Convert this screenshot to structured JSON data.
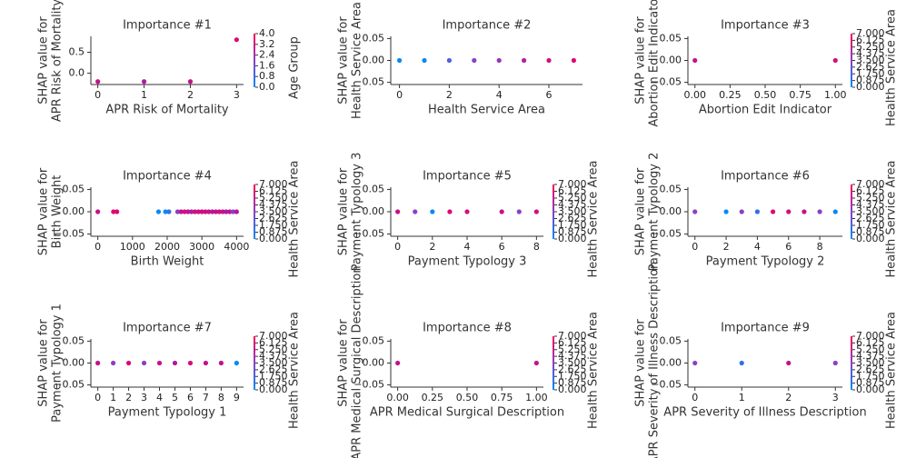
{
  "chart_data": [
    {
      "type": "scatter",
      "title": "Importance #1",
      "x_label": "APR Risk of Mortality",
      "y_label": [
        "SHAP value for",
        "APR Risk of Mortality"
      ],
      "x": [
        0,
        1,
        2,
        3
      ],
      "values": [
        -0.2,
        -0.2,
        -0.2,
        0.8
      ],
      "point_colors": [
        "#c4128a",
        "#b01a9c",
        "#c4128a",
        "#e00674"
      ],
      "xlim": [
        -0.15,
        3.15
      ],
      "xticks": [
        0,
        1,
        2,
        3
      ],
      "ylim": [
        -0.27,
        0.88
      ],
      "yticks": [
        {
          "value": 0,
          "label": "0.0"
        },
        0.5
      ],
      "colorbar_label": "Age Group",
      "colorbar_lim": [
        0,
        4
      ],
      "colorbar_ticks": [
        {
          "value": 0,
          "label": "0.0"
        },
        0.8,
        1.6,
        2.4,
        3.2,
        {
          "value": 4,
          "label": "4.0"
        }
      ]
    },
    {
      "type": "scatter",
      "title": "Importance #2",
      "x_label": "Health Service Area",
      "y_label": [
        "SHAP value for",
        "Health Service Area"
      ],
      "x": [
        0,
        1,
        2,
        3,
        4,
        5,
        6,
        7
      ],
      "values": [
        0,
        0,
        0,
        0,
        0,
        0,
        0,
        0
      ],
      "point_colors": [
        "#0a88f5",
        "#0a88f5",
        "#5060e0",
        "#8a3fc8",
        "#9a35b8",
        "#b0229f",
        "#d0107f",
        "#e00674"
      ],
      "xlim": [
        -0.35,
        7.35
      ],
      "xticks": [
        0,
        2,
        4,
        6
      ],
      "ylim": [
        -0.055,
        0.055
      ],
      "yticks": [
        0.05,
        {
          "value": 0,
          "label": "0.00"
        },
        {
          "value": -0.05,
          "label": "−0.05"
        }
      ]
    },
    {
      "type": "scatter",
      "title": "Importance #3",
      "x_label": "Abortion Edit Indicator",
      "y_label": [
        "SHAP value for",
        "Abortion Edit Indicator"
      ],
      "x": [
        0,
        1
      ],
      "values": [
        0,
        0
      ],
      "point_colors": [
        "#c4128a",
        "#d0107f"
      ],
      "xlim": [
        -0.05,
        1.05
      ],
      "xticks": [
        {
          "value": 0,
          "label": "0.00"
        },
        0.25,
        {
          "value": 0.5,
          "label": "0.50"
        },
        0.75,
        {
          "value": 1,
          "label": "1.00"
        }
      ],
      "ylim": [
        -0.055,
        0.055
      ],
      "yticks": [
        0.05,
        {
          "value": 0,
          "label": "0.00"
        },
        {
          "value": -0.05,
          "label": "−0.05"
        }
      ],
      "colorbar_label": "Health Service Area",
      "colorbar_lim": [
        0,
        7
      ],
      "colorbar_ticks": [
        {
          "value": 0,
          "label": "0.000"
        },
        0.875,
        {
          "value": 1.75,
          "label": "1.750"
        },
        2.625,
        {
          "value": 3.5,
          "label": "3.500"
        },
        4.375,
        {
          "value": 5.25,
          "label": "5.250"
        },
        6.125,
        {
          "value": 7,
          "label": "7.000"
        }
      ]
    },
    {
      "type": "scatter",
      "title": "Importance #4",
      "x_label": "Birth Weight",
      "y_label": [
        "SHAP value for",
        "Birth Weight"
      ],
      "x": [
        0,
        450,
        550,
        1750,
        1950,
        2050,
        2300,
        2400,
        2500,
        2600,
        2700,
        2800,
        2900,
        3000,
        3100,
        3200,
        3300,
        3400,
        3500,
        3600,
        3700,
        3800,
        3900,
        4000
      ],
      "values": [
        0,
        0,
        0,
        0,
        0,
        0,
        0,
        0,
        0,
        0,
        0,
        0,
        0,
        0,
        0,
        0,
        0,
        0,
        0,
        0,
        0,
        0,
        0,
        0
      ],
      "point_colors": [
        "#c4128a",
        "#e00674",
        "#e00674",
        "#0a88f5",
        "#0a88f5",
        "#3070e8",
        "#8a3fc8",
        "#c4128a",
        "#d0107f",
        "#c4128a",
        "#b01a9c",
        "#d0107f",
        "#c4128a",
        "#e00674",
        "#c4128a",
        "#d0107f",
        "#b01a9c",
        "#c4128a",
        "#d0107f",
        "#c4128a",
        "#b01a9c",
        "#c4128a",
        "#8a3fc8",
        "#b01a9c"
      ],
      "xlim": [
        -200,
        4200
      ],
      "xticks": [
        0,
        1000,
        2000,
        3000,
        4000
      ],
      "ylim": [
        -0.055,
        0.055
      ],
      "yticks": [
        0.05,
        {
          "value": 0,
          "label": "0.00"
        },
        {
          "value": -0.05,
          "label": "−0.05"
        }
      ],
      "colorbar_label": "Health Service Area",
      "colorbar_lim": [
        0,
        7
      ],
      "colorbar_ticks": [
        {
          "value": 0,
          "label": "0.000"
        },
        0.875,
        {
          "value": 1.75,
          "label": "1.750"
        },
        2.625,
        {
          "value": 3.5,
          "label": "3.500"
        },
        4.375,
        {
          "value": 5.25,
          "label": "5.250"
        },
        6.125,
        {
          "value": 7,
          "label": "7.000"
        }
      ]
    },
    {
      "type": "scatter",
      "title": "Importance #5",
      "x_label": "Payment Typology 3",
      "y_label": [
        "SHAP value for",
        "Payment Typology 3"
      ],
      "x": [
        0,
        1,
        2,
        3,
        4,
        6,
        7,
        8
      ],
      "values": [
        0,
        0,
        0,
        0,
        0,
        0,
        0,
        0
      ],
      "point_colors": [
        "#c4128a",
        "#8a3fc8",
        "#0a88f5",
        "#e00674",
        "#d0107f",
        "#c4128a",
        "#8a3fc8",
        "#d0107f"
      ],
      "xlim": [
        -0.4,
        8.4
      ],
      "xticks": [
        0,
        2,
        4,
        6,
        8
      ],
      "ylim": [
        -0.055,
        0.055
      ],
      "yticks": [
        0.05,
        {
          "value": 0,
          "label": "0.00"
        },
        {
          "value": -0.05,
          "label": "−0.05"
        }
      ],
      "colorbar_label": "Health Service Area",
      "colorbar_lim": [
        0,
        7
      ],
      "colorbar_ticks": [
        {
          "value": 0,
          "label": "0.000"
        },
        0.875,
        {
          "value": 1.75,
          "label": "1.750"
        },
        2.625,
        {
          "value": 3.5,
          "label": "3.500"
        },
        4.375,
        {
          "value": 5.25,
          "label": "5.250"
        },
        6.125,
        {
          "value": 7,
          "label": "7.000"
        }
      ]
    },
    {
      "type": "scatter",
      "title": "Importance #6",
      "x_label": "Payment Typology 2",
      "y_label": [
        "SHAP value for",
        "Payment Typology 2"
      ],
      "x": [
        0,
        2,
        3,
        4,
        5,
        6,
        7,
        8,
        9
      ],
      "values": [
        0,
        0,
        0,
        0,
        0,
        0,
        0,
        0,
        0
      ],
      "point_colors": [
        "#8a3fc8",
        "#0a88f5",
        "#8a3fc8",
        "#3070e8",
        "#e00674",
        "#d0107f",
        "#c4128a",
        "#8a3fc8",
        "#0a88f5"
      ],
      "xlim": [
        -0.45,
        9.45
      ],
      "xticks": [
        0,
        2,
        4,
        6,
        8
      ],
      "ylim": [
        -0.055,
        0.055
      ],
      "yticks": [
        0.05,
        {
          "value": 0,
          "label": "0.00"
        },
        {
          "value": -0.05,
          "label": "−0.05"
        }
      ],
      "colorbar_label": "Health Service Area",
      "colorbar_lim": [
        0,
        7
      ],
      "colorbar_ticks": [
        {
          "value": 0,
          "label": "0.000"
        },
        0.875,
        {
          "value": 1.75,
          "label": "1.750"
        },
        2.625,
        {
          "value": 3.5,
          "label": "3.500"
        },
        4.375,
        {
          "value": 5.25,
          "label": "5.250"
        },
        6.125,
        {
          "value": 7,
          "label": "7.000"
        }
      ]
    },
    {
      "type": "scatter",
      "title": "Importance #7",
      "x_label": "Payment Typology 1",
      "y_label": [
        "SHAP value for",
        "Payment Typology 1"
      ],
      "x": [
        0,
        1,
        2,
        3,
        4,
        5,
        6,
        7,
        8,
        9
      ],
      "values": [
        0,
        0,
        0,
        0,
        0,
        0,
        0,
        0,
        0,
        0
      ],
      "point_colors": [
        "#c4128a",
        "#8a3fc8",
        "#e00674",
        "#8a3fc8",
        "#c4128a",
        "#b01a9c",
        "#d0107f",
        "#c4128a",
        "#c4128a",
        "#0a88f5"
      ],
      "xlim": [
        -0.45,
        9.45
      ],
      "xticks": [
        0,
        1,
        2,
        3,
        4,
        5,
        6,
        7,
        8,
        9
      ],
      "ylim": [
        -0.055,
        0.055
      ],
      "yticks": [
        0.05,
        {
          "value": 0,
          "label": "0.00"
        },
        {
          "value": -0.05,
          "label": "−0.05"
        }
      ],
      "colorbar_label": "Health Service Area",
      "colorbar_lim": [
        0,
        7
      ],
      "colorbar_ticks": [
        {
          "value": 0,
          "label": "0.000"
        },
        0.875,
        {
          "value": 1.75,
          "label": "1.750"
        },
        2.625,
        {
          "value": 3.5,
          "label": "3.500"
        },
        4.375,
        {
          "value": 5.25,
          "label": "5.250"
        },
        6.125,
        {
          "value": 7,
          "label": "7.000"
        }
      ]
    },
    {
      "type": "scatter",
      "title": "Importance #8",
      "x_label": "APR Medical Surgical Description",
      "y_label": [
        "SHAP value for",
        "APR Medical Surgical Description"
      ],
      "x": [
        0,
        1
      ],
      "values": [
        0,
        0
      ],
      "point_colors": [
        "#c4128a",
        "#c4128a"
      ],
      "xlim": [
        -0.05,
        1.05
      ],
      "xticks": [
        {
          "value": 0,
          "label": "0.00"
        },
        0.25,
        {
          "value": 0.5,
          "label": "0.50"
        },
        0.75,
        {
          "value": 1,
          "label": "1.00"
        }
      ],
      "ylim": [
        -0.055,
        0.055
      ],
      "yticks": [
        0.05,
        {
          "value": 0,
          "label": "0.00"
        },
        {
          "value": -0.05,
          "label": "−0.05"
        }
      ],
      "colorbar_label": "Health Service Area",
      "colorbar_lim": [
        0,
        7
      ],
      "colorbar_ticks": [
        {
          "value": 0,
          "label": "0.000"
        },
        0.875,
        {
          "value": 1.75,
          "label": "1.750"
        },
        2.625,
        {
          "value": 3.5,
          "label": "3.500"
        },
        4.375,
        {
          "value": 5.25,
          "label": "5.250"
        },
        6.125,
        {
          "value": 7,
          "label": "7.000"
        }
      ]
    },
    {
      "type": "scatter",
      "title": "Importance #9",
      "x_label": "APR Severity of Illness Description",
      "y_label": [
        "SHAP value for",
        "APR Severity of Illness Description"
      ],
      "x": [
        0,
        1,
        2,
        3
      ],
      "values": [
        0,
        0,
        0,
        0
      ],
      "point_colors": [
        "#8a3fc8",
        "#3070e8",
        "#c4128a",
        "#8a3fc8"
      ],
      "xlim": [
        -0.15,
        3.15
      ],
      "xticks": [
        0,
        1,
        2,
        3
      ],
      "ylim": [
        -0.055,
        0.055
      ],
      "yticks": [
        0.05,
        {
          "value": 0,
          "label": "0.00"
        },
        {
          "value": -0.05,
          "label": "−0.05"
        }
      ],
      "colorbar_label": "Health Service Area",
      "colorbar_lim": [
        0,
        7
      ],
      "colorbar_ticks": [
        {
          "value": 0,
          "label": "0.000"
        },
        0.875,
        {
          "value": 1.75,
          "label": "1.750"
        },
        2.625,
        {
          "value": 3.5,
          "label": "3.500"
        },
        4.375,
        {
          "value": 5.25,
          "label": "5.250"
        },
        6.125,
        {
          "value": 7,
          "label": "7.000"
        }
      ]
    }
  ]
}
